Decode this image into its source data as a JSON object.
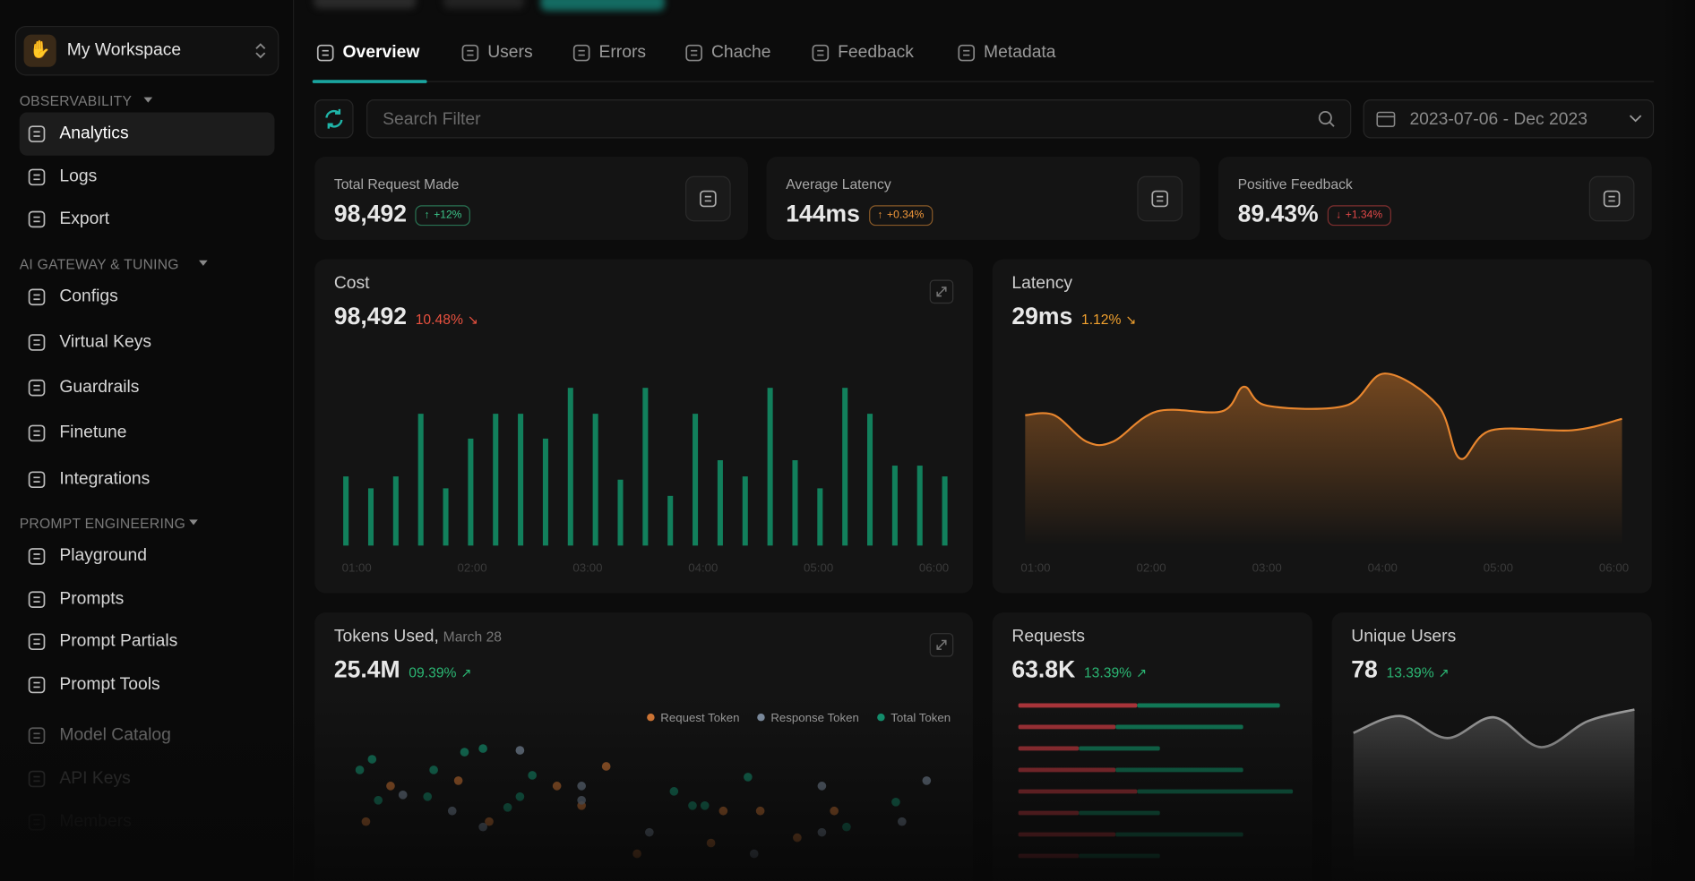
{
  "sidebar": {
    "workspace": "My Workspace",
    "sections": [
      {
        "title": "OBSERVABILITY",
        "items": [
          "Analytics",
          "Logs",
          "Export"
        ]
      },
      {
        "title": "AI GATEWAY & TUNING",
        "items": [
          "Configs",
          "Virtual Keys",
          "Guardrails",
          "Finetune",
          "Integrations"
        ]
      },
      {
        "title": "PROMPT ENGINEERING",
        "items": [
          "Playground",
          "Prompts",
          "Prompt Partials",
          "Prompt Tools"
        ]
      }
    ],
    "more_items": [
      "Model Catalog",
      "API Keys",
      "Members"
    ]
  },
  "tabs": [
    "Overview",
    "Users",
    "Errors",
    "Chache",
    "Feedback",
    "Metadata"
  ],
  "toolbar": {
    "search_placeholder": "Search Filter",
    "date_range": "2023-07-06 - Dec 2023"
  },
  "stats": [
    {
      "label": "Total Request Made",
      "value": "98,492",
      "change": "+12%",
      "color": "#3cc68a"
    },
    {
      "label": "Average Latency",
      "value": "144ms",
      "change": "+0.34%",
      "color": "#f0973a"
    },
    {
      "label": "Positive Feedback",
      "value": "89.43%",
      "change": "+1.34%",
      "color": "#e04848"
    }
  ],
  "charts": [
    {
      "type": "bar",
      "title": "Cost",
      "value": "98,492",
      "change": "10.48%",
      "change_color": "#e8513f",
      "color": "#12805c",
      "values": [
        64,
        53,
        64,
        122,
        53,
        99,
        122,
        122,
        99,
        146,
        122,
        61,
        146,
        46,
        122,
        79,
        64,
        146,
        79,
        53,
        146,
        122,
        74,
        74,
        64
      ],
      "ylim": [
        0,
        160
      ],
      "x_labels": [
        "01:00",
        "02:00",
        "03:00",
        "04:00",
        "05:00",
        "06:00"
      ]
    },
    {
      "type": "line",
      "title": "Latency",
      "value": "29ms",
      "change": "1.12%",
      "change_color": "#f0a02e",
      "color": "#e8862e",
      "x": [
        0.91,
        1.16,
        1.44,
        1.67,
        2.05,
        2.61,
        2.8,
        3.0,
        3.68,
        4.02,
        4.48,
        4.67,
        4.94,
        5.64,
        6.07
      ],
      "values": [
        69,
        69,
        55,
        55,
        71,
        71,
        84,
        74,
        74,
        91,
        74,
        46,
        61,
        61,
        67
      ],
      "xlim": [
        0.91,
        6.07
      ],
      "ylim": [
        0,
        100
      ],
      "xticks": [
        {
          "value": 1,
          "label": "01:00"
        },
        {
          "value": 2,
          "label": "02:00"
        },
        {
          "value": 3,
          "label": "03:00"
        },
        {
          "value": 4,
          "label": "04:00"
        },
        {
          "value": 5,
          "label": "05:00"
        },
        {
          "value": 6,
          "label": "06:00"
        }
      ]
    },
    {
      "type": "scatter",
      "title": "Tokens Used,",
      "subtitle": "March 28",
      "value": "25.4M",
      "change": "09.39%",
      "change_color": "#2bb673",
      "xlim": [
        0,
        100
      ],
      "ylim": [
        0,
        100
      ],
      "series": [
        {
          "name": "Request Token",
          "color": "#e8833a",
          "x": [
            9,
            20,
            36,
            44,
            40,
            63,
            69,
            81,
            5,
            49,
            61,
            75,
            25
          ],
          "values": [
            53,
            56,
            53,
            64,
            42,
            39,
            39,
            39,
            33,
            15,
            21,
            24,
            33
          ]
        },
        {
          "name": "Response Token",
          "color": "#8a9bb0",
          "x": [
            11,
            30,
            40,
            40,
            79,
            96,
            19,
            24,
            79,
            92,
            51,
            68
          ],
          "values": [
            48,
            73,
            53,
            45,
            53,
            56,
            39,
            30,
            27,
            33,
            27,
            15
          ]
        },
        {
          "name": "Total Token",
          "color": "#15a07a",
          "x": [
            4,
            6,
            21,
            24,
            16,
            15,
            32,
            30,
            55,
            58,
            60,
            67,
            91,
            28,
            7,
            83
          ],
          "values": [
            62,
            68,
            72,
            74,
            62,
            47,
            59,
            47,
            50,
            42,
            42,
            58,
            44,
            41,
            45,
            30
          ]
        }
      ]
    },
    {
      "type": "hbar",
      "title": "Requests",
      "value": "63.8K",
      "change": "13.39%",
      "change_color": "#2bb673",
      "xlim": [
        0,
        260
      ],
      "series": [
        {
          "color": "#b3373d",
          "values": [
            110,
            90,
            56,
            90,
            110,
            56,
            90,
            56
          ]
        },
        {
          "color": "#12805c",
          "values": [
            132,
            118,
            75,
            118,
            144,
            75,
            118,
            75
          ]
        }
      ]
    },
    {
      "type": "area",
      "title": "Unique Users",
      "value": "78",
      "change": "13.39%",
      "change_color": "#2bb673",
      "color": "#a8a8a8",
      "values": [
        68,
        81,
        64,
        80,
        57,
        77,
        86
      ],
      "ylim": [
        0,
        100
      ]
    }
  ]
}
